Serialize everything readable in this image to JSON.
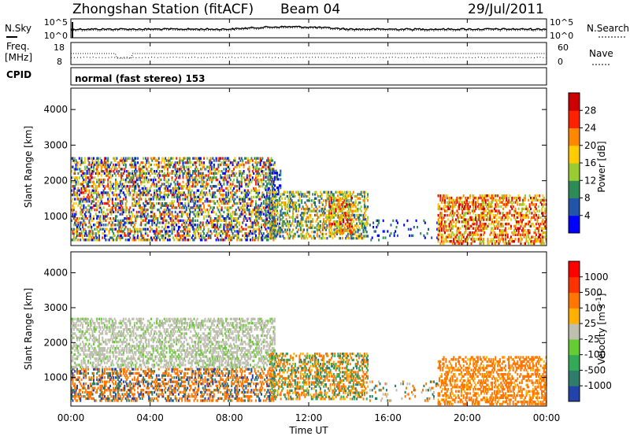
{
  "header": {
    "title": "Zhongshan Station (fitACF)",
    "beam": "Beam 04",
    "date": "29/Jul/2011"
  },
  "noise_panel": {
    "left_label": "N.Sky",
    "left_ticks": [
      "10^5",
      "10^0"
    ],
    "right_ticks": [
      "10^5",
      "10^0"
    ],
    "right_label": "N.Search"
  },
  "freq_panel": {
    "left_label_line1": "Freq.",
    "left_label_line2": "[MHz]",
    "left_ticks": [
      "18",
      "8"
    ],
    "right_ticks": [
      "60",
      "0"
    ],
    "right_label": "Nave"
  },
  "cpid_panel": {
    "label": "CPID",
    "mode_text": "normal (fast stereo) 153"
  },
  "x_axis": {
    "ticks": [
      "00:00",
      "04:00",
      "08:00",
      "12:00",
      "16:00",
      "20:00",
      "00:00"
    ],
    "label": "Time UT"
  },
  "chart_data": [
    {
      "type": "heatmap",
      "name": "power",
      "ylabel": "Slant Range [km]",
      "yticks": [
        "1000",
        "2000",
        "3000",
        "4000"
      ],
      "ylim": [
        180,
        4600
      ],
      "xlim_hours": [
        0,
        24
      ],
      "colorbar_label": "Power [dB]",
      "colorbar_ticks": [
        "4",
        "8",
        "12",
        "16",
        "20",
        "24",
        "28"
      ],
      "colors": [
        "#0000ff",
        "#2255aa",
        "#2e8b57",
        "#99cc33",
        "#ffcc00",
        "#ff8800",
        "#ff2200",
        "#cc0000"
      ],
      "features": [
        {
          "t0": 0.0,
          "t1": 10.3,
          "r0": 300,
          "r1": 2650,
          "level": "high-mixed"
        },
        {
          "t0": 9.8,
          "t1": 10.6,
          "r0": 400,
          "r1": 2300,
          "level": "low"
        },
        {
          "t0": 10.0,
          "t1": 15.0,
          "r0": 350,
          "r1": 1700,
          "level": "medium"
        },
        {
          "t0": 13.0,
          "t1": 14.2,
          "r0": 500,
          "r1": 1600,
          "level": "high"
        },
        {
          "t0": 15.0,
          "t1": 18.5,
          "r0": 300,
          "r1": 900,
          "level": "sparse"
        },
        {
          "t0": 18.5,
          "t1": 24.0,
          "r0": 200,
          "r1": 1600,
          "level": "high"
        }
      ]
    },
    {
      "type": "heatmap",
      "name": "velocity",
      "ylabel": "Slant Range [km]",
      "yticks": [
        "1000",
        "2000",
        "3000",
        "4000"
      ],
      "ylim": [
        180,
        4600
      ],
      "xlim_hours": [
        0,
        24
      ],
      "colorbar_label": "Velocity [m s^-1]",
      "colorbar_ticks": [
        "1000",
        "500",
        "100",
        "25",
        "-25",
        "-100",
        "-500",
        "-1000"
      ],
      "colors": [
        "#2244aa",
        "#2e7d6b",
        "#33aa55",
        "#66cc33",
        "#bfbfb0",
        "#ffb000",
        "#ff7700",
        "#ff3300",
        "#ff0000"
      ],
      "features": [
        {
          "t0": 0.0,
          "t1": 10.3,
          "r0": 300,
          "r1": 2700,
          "level": "mixed-grey-orange"
        },
        {
          "t0": 10.0,
          "t1": 15.0,
          "r0": 350,
          "r1": 1700,
          "level": "orange-green"
        },
        {
          "t0": 15.0,
          "t1": 18.5,
          "r0": 300,
          "r1": 900,
          "level": "sparse"
        },
        {
          "t0": 18.5,
          "t1": 24.0,
          "r0": 200,
          "r1": 1600,
          "level": "orange"
        }
      ]
    }
  ]
}
